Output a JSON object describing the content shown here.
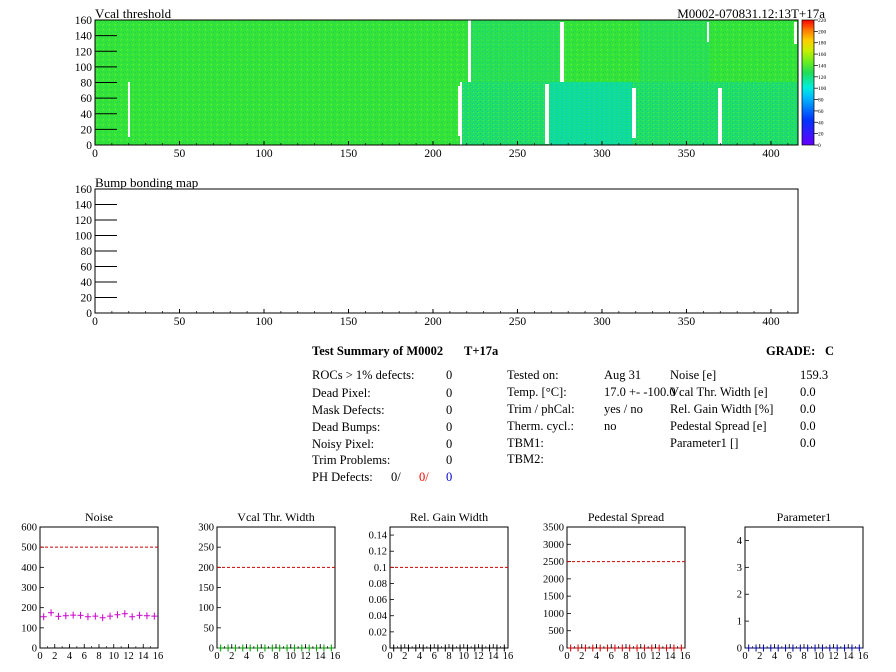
{
  "top_map": {
    "title": "Vcal threshold",
    "module_label": "M0002-070831.12:13T+17a",
    "x_ticks": [
      "0",
      "50",
      "100",
      "150",
      "200",
      "250",
      "300",
      "350",
      "400"
    ],
    "y_ticks": [
      "0",
      "20",
      "40",
      "60",
      "80",
      "100",
      "120",
      "140",
      "160"
    ],
    "palette_ticks": [
      "0",
      "20",
      "40",
      "60",
      "80",
      "100",
      "120",
      "140",
      "160",
      "180",
      "200",
      "220"
    ]
  },
  "bump_map": {
    "title": "Bump bonding map",
    "x_ticks": [
      "0",
      "50",
      "100",
      "150",
      "200",
      "250",
      "300",
      "350",
      "400"
    ],
    "y_ticks": [
      "0",
      "20",
      "40",
      "60",
      "80",
      "100",
      "120",
      "140",
      "160"
    ]
  },
  "summary": {
    "title": "Test Summary of M0002",
    "temp_tag": "T+17a",
    "grade_label": "GRADE:",
    "grade_value": "C",
    "left": [
      {
        "label": "ROCs > 1% defects:",
        "value": "0"
      },
      {
        "label": "Dead Pixel:",
        "value": "0"
      },
      {
        "label": "Mask Defects:",
        "value": "0"
      },
      {
        "label": "Dead Bumps:",
        "value": "0"
      },
      {
        "label": "Noisy Pixel:",
        "value": "0"
      },
      {
        "label": "Trim Problems:",
        "value": "0"
      }
    ],
    "ph_defects": {
      "label": "PH Defects:",
      "v1": "0/",
      "v2": "0/",
      "v3": "0",
      "color2": "#ff0000",
      "color3": "#0000cc"
    },
    "middle": [
      {
        "label": "Tested on:",
        "value": "Aug 31"
      },
      {
        "label": "Temp. [°C]:",
        "value": "17.0 +- -100.0"
      },
      {
        "label": "Trim / phCal:",
        "value": "yes / no"
      },
      {
        "label": "Therm. cycl.:",
        "value": "no"
      },
      {
        "label": "TBM1:",
        "value": ""
      },
      {
        "label": "TBM2:",
        "value": ""
      }
    ],
    "right": [
      {
        "label": "Noise [e]",
        "value": "159.3"
      },
      {
        "label": "Vcal Thr. Width [e]",
        "value": "0.0"
      },
      {
        "label": "Rel. Gain Width [%]",
        "value": "0.0"
      },
      {
        "label": "Pedestal Spread [e]",
        "value": "0.0"
      },
      {
        "label": "Parameter1 []",
        "value": "0.0"
      }
    ]
  },
  "chart_data": [
    {
      "type": "heatmap",
      "title": "Vcal threshold",
      "xlim": [
        0,
        416
      ],
      "ylim": [
        0,
        160
      ],
      "z_range": [
        0,
        220
      ],
      "typical_value_top_half": 130,
      "typical_value_bottom_half": 120,
      "colors": {
        "high": "#ff0000",
        "mid": "#22dd22",
        "low": "#00ddee",
        "min": "#6600ff"
      }
    },
    {
      "type": "heatmap",
      "title": "Bump bonding map",
      "xlim": [
        0,
        416
      ],
      "ylim": [
        0,
        160
      ],
      "values": []
    },
    {
      "type": "scatter",
      "title": "Noise",
      "x": [
        0,
        1,
        2,
        3,
        4,
        5,
        6,
        7,
        8,
        9,
        10,
        11,
        12,
        13,
        14,
        15
      ],
      "y": [
        155,
        175,
        157,
        160,
        163,
        162,
        155,
        158,
        150,
        158,
        165,
        170,
        155,
        162,
        160,
        158
      ],
      "ylim": [
        0,
        600
      ],
      "xlim": [
        0,
        16
      ],
      "limit": 500,
      "x_ticks": [
        "0",
        "2",
        "4",
        "6",
        "8",
        "10",
        "12",
        "14",
        "16"
      ],
      "y_ticks": [
        "0",
        "100",
        "200",
        "300",
        "400",
        "500",
        "600"
      ],
      "color": "#cc00cc"
    },
    {
      "type": "scatter",
      "title": "Vcal Thr. Width",
      "x": [
        0,
        1,
        2,
        3,
        4,
        5,
        6,
        7,
        8,
        9,
        10,
        11,
        12,
        13,
        14,
        15
      ],
      "y": [
        0,
        0,
        0,
        0,
        0,
        0,
        0,
        0,
        0,
        0,
        0,
        0,
        0,
        0,
        0,
        0
      ],
      "ylim": [
        0,
        300
      ],
      "xlim": [
        0,
        16
      ],
      "limit": 200,
      "x_ticks": [
        "0",
        "2",
        "4",
        "6",
        "8",
        "10",
        "12",
        "14",
        "16"
      ],
      "y_ticks": [
        "0",
        "50",
        "100",
        "150",
        "200",
        "250",
        "300"
      ],
      "color": "#009900"
    },
    {
      "type": "scatter",
      "title": "Rel. Gain Width",
      "x": [
        0,
        1,
        2,
        3,
        4,
        5,
        6,
        7,
        8,
        9,
        10,
        11,
        12,
        13,
        14,
        15
      ],
      "y": [
        0,
        0,
        0,
        0,
        0,
        0,
        0,
        0,
        0,
        0,
        0,
        0,
        0,
        0,
        0,
        0
      ],
      "ylim": [
        0,
        0.15
      ],
      "xlim": [
        0,
        16
      ],
      "limit": 0.1,
      "x_ticks": [
        "0",
        "2",
        "4",
        "6",
        "8",
        "10",
        "12",
        "14",
        "16"
      ],
      "y_ticks": [
        "0",
        "0.02",
        "0.04",
        "0.06",
        "0.08",
        "0.1",
        "0.12",
        "0.14"
      ],
      "color": "#000000"
    },
    {
      "type": "scatter",
      "title": "Pedestal Spread",
      "x": [
        0,
        1,
        2,
        3,
        4,
        5,
        6,
        7,
        8,
        9,
        10,
        11,
        12,
        13,
        14,
        15
      ],
      "y": [
        0,
        0,
        0,
        0,
        0,
        0,
        0,
        0,
        0,
        0,
        0,
        0,
        0,
        0,
        0,
        0
      ],
      "ylim": [
        0,
        3500
      ],
      "xlim": [
        0,
        16
      ],
      "limit": 2500,
      "x_ticks": [
        "0",
        "2",
        "4",
        "6",
        "8",
        "10",
        "12",
        "14",
        "16"
      ],
      "y_ticks": [
        "0",
        "500",
        "1000",
        "1500",
        "2000",
        "2500",
        "3000",
        "3500"
      ],
      "color": "#cc0000"
    },
    {
      "type": "scatter",
      "title": "Parameter1",
      "x": [
        0,
        1,
        2,
        3,
        4,
        5,
        6,
        7,
        8,
        9,
        10,
        11,
        12,
        13,
        14,
        15
      ],
      "y": [
        0,
        0,
        0,
        0,
        0,
        0,
        0,
        0,
        0,
        0,
        0,
        0,
        0,
        0,
        0,
        0
      ],
      "ylim": [
        0,
        4.5
      ],
      "xlim": [
        0,
        16
      ],
      "x_ticks": [
        "0",
        "2",
        "4",
        "6",
        "8",
        "10",
        "12",
        "14",
        "16"
      ],
      "y_ticks": [
        "0",
        "1",
        "2",
        "3",
        "4"
      ],
      "color": "#000099"
    }
  ]
}
